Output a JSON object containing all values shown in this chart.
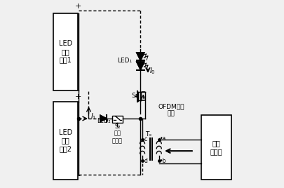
{
  "bg_color": "#f0f0f0",
  "line_color": "#000000",
  "fig_width": 4.06,
  "fig_height": 2.68,
  "dpi": 100,
  "box1_label": "LED\n驱动\n电源1",
  "box2_label": "LED\n驱动\n电源2",
  "box3_label": "通信\n数据源",
  "ofdm_label": "OFDM信号\n注入",
  "net_xfmr_label": "网络\n变压器"
}
